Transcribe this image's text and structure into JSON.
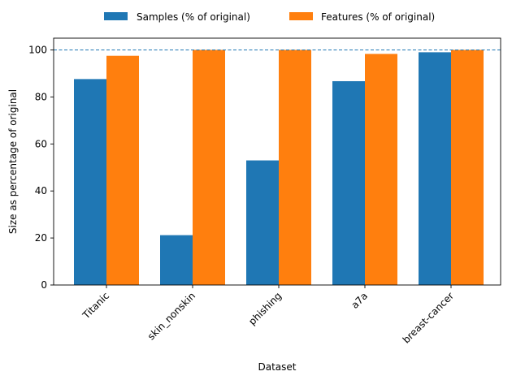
{
  "chart_data": {
    "type": "bar",
    "title": "",
    "xlabel": "Dataset",
    "ylabel": "Size as percentage of original",
    "categories": [
      "Titanic",
      "skin_nonskin",
      "phishing",
      "a7a",
      "breast-cancer"
    ],
    "series": [
      {
        "name": "Samples (% of original)",
        "color": "#1f77b4",
        "values": [
          87.6,
          21.2,
          53.0,
          86.7,
          99.0
        ]
      },
      {
        "name": "Features (% of original)",
        "color": "#ff7f0e",
        "values": [
          97.5,
          100.0,
          100.0,
          98.3,
          100.0
        ]
      }
    ],
    "ylim": [
      0,
      105
    ],
    "yticks": [
      0,
      20,
      40,
      60,
      80,
      100
    ],
    "reference_line": {
      "y": 100,
      "style": "dashed",
      "color": "#1f77b4"
    },
    "legend_position": "top-center",
    "grid": false
  }
}
